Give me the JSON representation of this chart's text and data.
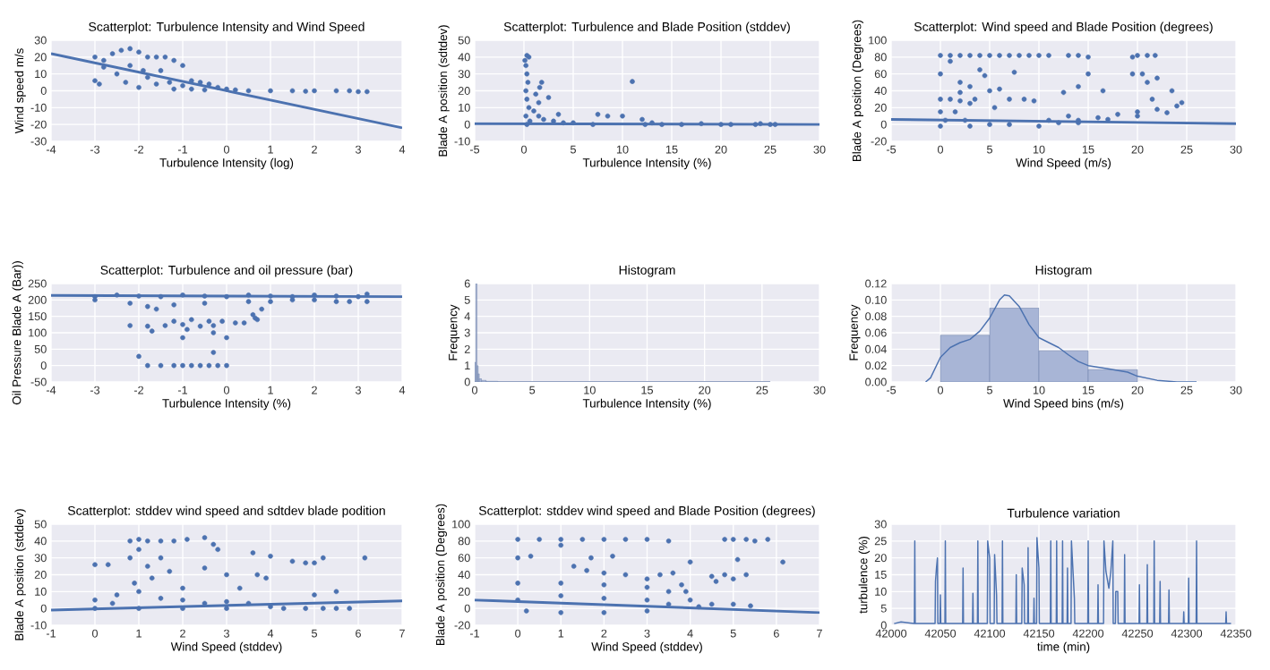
{
  "chart_data": [
    {
      "type": "scatter",
      "title": "Scatterplot: Turbulence Intensity and Wind Speed",
      "xlabel": "Turbulence Intensity (log)",
      "ylabel": "Wind speed m/s",
      "xlim": [
        -4,
        4
      ],
      "ylim": [
        -30,
        30
      ],
      "xticks": [
        -4,
        -3,
        -2,
        -1,
        0,
        1,
        2,
        3,
        4
      ],
      "yticks": [
        -30,
        -20,
        -10,
        0,
        10,
        20,
        30
      ],
      "grid": true,
      "marker": "circle",
      "series": [
        {
          "type": "scatter",
          "color": "#4c72b0",
          "x": [
            -3,
            -2.9,
            -3,
            -2.8,
            -2.6,
            -2.4,
            -2.2,
            -2.0,
            -1.8,
            -1.6,
            -1.4,
            -1.2,
            -1.0,
            -2.8,
            -2.5,
            -2.3,
            -2,
            -1.8,
            -1.5,
            -1.3,
            -1,
            -0.8,
            -0.6,
            -0.4,
            -0.2,
            -2.2,
            -1.9,
            -1.6,
            -1.2,
            -0.8,
            0,
            0.2,
            0.5,
            1,
            1.5,
            2,
            2.5,
            3,
            3.2,
            -0.5,
            1.8,
            2.8
          ],
          "values": [
            6,
            4,
            20,
            18,
            22,
            24,
            25,
            23,
            20,
            20,
            20,
            18,
            15,
            14,
            10,
            5,
            2,
            8,
            12,
            5,
            3,
            6,
            5,
            4,
            2,
            15,
            12,
            4,
            1,
            1,
            1,
            0.5,
            0,
            0,
            0,
            0,
            0,
            -0.5,
            -0.5,
            0.5,
            -0.3,
            0
          ]
        },
        {
          "type": "line",
          "color": "#4c72b0",
          "x": [
            -4,
            4
          ],
          "values": [
            22,
            -22
          ],
          "marker": "none"
        }
      ]
    },
    {
      "type": "scatter",
      "title": "Scatterplot: Turbulence and Blade Position (stddev)",
      "xlabel": "Turbulence Intensity (%)",
      "ylabel": "Blade A position (sdtdev)",
      "xlim": [
        -5,
        30
      ],
      "ylim": [
        -10,
        50
      ],
      "xticks": [
        -5,
        0,
        5,
        10,
        15,
        20,
        25,
        30
      ],
      "yticks": [
        -10,
        0,
        10,
        20,
        30,
        40,
        50
      ],
      "grid": true,
      "marker": "circle",
      "series": [
        {
          "type": "scatter",
          "color": "#4c72b0",
          "x": [
            0.1,
            0.3,
            0.5,
            0.2,
            0.3,
            0.4,
            0.2,
            0.3,
            0.5,
            0.2,
            0.3,
            0.6,
            1,
            1.5,
            1.2,
            1.6,
            1.8,
            1.5,
            2.5,
            2,
            3,
            3.5,
            4,
            5,
            7,
            7.5,
            8.5,
            10,
            11,
            12,
            12.3,
            13,
            14,
            16,
            18,
            20,
            21,
            23.5,
            24,
            25,
            25.5
          ],
          "values": [
            38,
            41,
            40,
            35,
            30,
            25,
            20,
            15,
            10,
            5,
            0,
            2,
            8,
            5,
            18,
            22,
            25,
            13,
            16,
            3,
            2,
            6,
            1,
            1,
            0,
            6,
            5,
            5,
            25.5,
            3,
            0,
            1,
            0,
            0,
            0.5,
            0,
            0,
            0,
            0.5,
            0,
            0
          ]
        },
        {
          "type": "line",
          "color": "#4c72b0",
          "x": [
            -5,
            30
          ],
          "values": [
            0.5,
            0
          ],
          "marker": "none"
        }
      ]
    },
    {
      "type": "scatter",
      "title": "Scatterplot: Wind speed and Blade Position (degrees)",
      "xlabel": "Wind Speed (m/s)",
      "ylabel": "Blade A position (Degrees)",
      "xlim": [
        -5,
        30
      ],
      "ylim": [
        -20,
        100
      ],
      "xticks": [
        -5,
        0,
        5,
        10,
        15,
        20,
        25,
        30
      ],
      "yticks": [
        -20,
        0,
        20,
        40,
        60,
        80,
        100
      ],
      "grid": true,
      "marker": "circle",
      "series": [
        {
          "type": "scatter",
          "color": "#4c72b0",
          "x": [
            0,
            1,
            2,
            3,
            4,
            5,
            6,
            7,
            8,
            9,
            10,
            11,
            13,
            14,
            15,
            19.5,
            20,
            21,
            21.8,
            0,
            1,
            2,
            3,
            4,
            5,
            6,
            7,
            8.5,
            9.5,
            3.5,
            5.5,
            7.5,
            14,
            15,
            12.5,
            16.5,
            19.5,
            20.5,
            21,
            22,
            21.5,
            23.5,
            2,
            4.5,
            0,
            1,
            2,
            3,
            0,
            1.5,
            0.5,
            2.5,
            0,
            3,
            5,
            7,
            10,
            12,
            14,
            16,
            18,
            20,
            22,
            24,
            24.5,
            23,
            20,
            17,
            14,
            11,
            13
          ],
          "values": [
            82,
            82,
            82,
            82,
            82,
            82,
            82,
            82,
            82,
            82,
            82,
            82,
            82,
            82,
            80,
            80,
            82,
            82,
            82,
            60,
            75,
            50,
            45,
            65,
            40,
            42,
            30,
            30,
            28,
            30,
            20,
            62,
            45,
            60,
            38,
            40,
            60,
            60,
            50,
            55,
            30,
            40,
            38,
            58,
            30,
            30,
            28,
            25,
            15,
            15,
            5,
            5,
            -2,
            -2,
            0,
            0,
            -2,
            2,
            5,
            8,
            12,
            15,
            18,
            22,
            26,
            14,
            10,
            6,
            2,
            5,
            10
          ]
        },
        {
          "type": "line",
          "color": "#4c72b0",
          "x": [
            -5,
            30
          ],
          "values": [
            6,
            1
          ],
          "marker": "none"
        }
      ]
    },
    {
      "type": "scatter",
      "title": "Scatterplot: Turbulence and oil pressure (bar)",
      "xlabel": "Turbulence Intensity (%)",
      "ylabel": "Oil Pressure Blade A (Bar))",
      "xlim": [
        -4,
        4
      ],
      "ylim": [
        -50,
        250
      ],
      "xticks": [
        -4,
        -3,
        -2,
        -1,
        0,
        1,
        2,
        3,
        4
      ],
      "yticks": [
        -50,
        0,
        50,
        100,
        150,
        200,
        250
      ],
      "grid": true,
      "marker": "circle",
      "series": [
        {
          "type": "scatter",
          "color": "#4c72b0",
          "x": [
            -3,
            -2.5,
            -2,
            -1.5,
            -1,
            -0.5,
            0,
            0.5,
            1,
            1.5,
            2,
            2.5,
            3,
            3.2,
            -3,
            -2.2,
            -1.8,
            -1.2,
            -0.5,
            0.5,
            1,
            1.5,
            2,
            2.5,
            2.8,
            3.2,
            -1.6,
            0.8,
            0.7,
            0.6,
            0.65,
            -2.2,
            -1.8,
            -1.4,
            -1,
            -0.6,
            -0.3,
            -1.2,
            -0.8,
            -0.4,
            -0.1,
            0.2,
            0.4,
            -1.7,
            -0.9,
            -1,
            -0.3,
            0,
            -2,
            -0.3,
            -1.8,
            -1.5,
            -1.2,
            -1,
            -0.8,
            -0.6,
            -0.4,
            -0.2,
            0
          ],
          "values": [
            210,
            215,
            212,
            210,
            215,
            212,
            210,
            215,
            212,
            210,
            215,
            212,
            210,
            218,
            200,
            190,
            180,
            185,
            190,
            195,
            195,
            200,
            200,
            195,
            195,
            195,
            172,
            172,
            140,
            155,
            145,
            122,
            120,
            122,
            125,
            120,
            122,
            135,
            140,
            135,
            135,
            130,
            130,
            105,
            110,
            85,
            100,
            85,
            28,
            40,
            0,
            0,
            0,
            0,
            0,
            0,
            0,
            0,
            0
          ]
        },
        {
          "type": "line",
          "color": "#4c72b0",
          "x": [
            -4,
            4
          ],
          "values": [
            214,
            210
          ],
          "marker": "none"
        }
      ]
    },
    {
      "type": "histogram",
      "title": "Histogram",
      "xlabel": "Turbulence Intensity (%)",
      "ylabel": "Frequency",
      "xlim": [
        0,
        30
      ],
      "ylim": [
        0,
        6
      ],
      "xticks": [
        0,
        5,
        10,
        15,
        20,
        25,
        30
      ],
      "yticks": [
        0,
        1,
        2,
        3,
        4,
        5,
        6
      ],
      "grid": true,
      "color": "#a8b5d6",
      "bins": [
        0,
        0.1,
        0.2,
        0.3,
        0.4,
        0.6,
        1,
        2,
        25.7
      ],
      "values": [
        1.2,
        6,
        1,
        0.5,
        0.2,
        0.1,
        0.05,
        0.02
      ]
    },
    {
      "type": "histogram",
      "title": "Histogram",
      "xlabel": "Wind Speed bins (m/s)",
      "ylabel": "Frequency",
      "xlim": [
        -5,
        30
      ],
      "ylim": [
        0,
        0.12
      ],
      "xticks": [
        -5,
        0,
        5,
        10,
        15,
        20,
        25,
        30
      ],
      "yticks": [
        {
          "value": 0,
          "label": "0.00"
        },
        {
          "value": 0.02,
          "label": "0.02"
        },
        {
          "value": 0.04,
          "label": "0.04"
        },
        {
          "value": 0.06,
          "label": "0.06"
        },
        {
          "value": 0.08,
          "label": "0.08"
        },
        {
          "value": 0.1,
          "label": "0.10"
        },
        {
          "value": 0.12,
          "label": "0.12"
        }
      ],
      "grid": true,
      "color": "#a8b5d6",
      "bins": [
        0,
        5,
        10,
        15,
        20
      ],
      "values": [
        0.057,
        0.09,
        0.038,
        0.015
      ],
      "series": [
        {
          "type": "line",
          "color": "#4c72b0",
          "x": [
            -1.5,
            -1,
            0,
            1,
            2,
            3,
            4,
            5,
            6,
            6.5,
            7,
            8,
            9,
            10,
            11,
            12,
            13,
            14,
            15,
            17,
            19,
            20,
            22,
            24,
            26
          ],
          "values": [
            0,
            0.005,
            0.03,
            0.042,
            0.048,
            0.052,
            0.062,
            0.078,
            0.1,
            0.106,
            0.105,
            0.092,
            0.07,
            0.054,
            0.048,
            0.042,
            0.033,
            0.025,
            0.02,
            0.016,
            0.012,
            0.007,
            0.002,
            0,
            0
          ]
        }
      ]
    },
    {
      "type": "scatter",
      "title": "Scatterplot: stddev wind speed and sdtdev blade podition",
      "xlabel": "Wind Speed (stddev)",
      "ylabel": "Blade A position (stddev)",
      "xlim": [
        -1,
        7
      ],
      "ylim": [
        -10,
        50
      ],
      "xticks": [
        -1,
        0,
        1,
        2,
        3,
        4,
        5,
        6,
        7
      ],
      "yticks": [
        -10,
        0,
        10,
        20,
        30,
        40,
        50
      ],
      "grid": true,
      "marker": "circle",
      "series": [
        {
          "type": "scatter",
          "color": "#4c72b0",
          "x": [
            0.8,
            1,
            1.2,
            1.5,
            1.8,
            2.1,
            0.8,
            1,
            1.2,
            1.5,
            1.7,
            1.3,
            0.9,
            2,
            0,
            0.3,
            2.5,
            2.7,
            2.8,
            3,
            2.5,
            3.6,
            4,
            3.7,
            3.9,
            4.5,
            4.8,
            5,
            5.2,
            6.15,
            5,
            5.5,
            3.3,
            0,
            0.5,
            1,
            1.5,
            2,
            2.5,
            3,
            3.5,
            4,
            4.3,
            0,
            1,
            2,
            3,
            4.8,
            5.2,
            5.5,
            5.8,
            0.4
          ],
          "values": [
            40,
            41,
            40,
            40,
            40,
            41,
            30,
            35,
            25,
            30,
            22,
            18,
            15,
            12,
            26,
            26,
            42,
            38,
            35,
            20,
            24,
            33,
            31,
            20,
            18,
            28,
            27,
            27,
            30,
            30,
            8,
            10,
            12,
            5,
            8,
            10,
            6,
            5,
            3,
            4,
            3,
            1,
            0,
            0,
            0,
            0,
            0,
            0,
            0,
            0,
            0,
            3
          ]
        },
        {
          "type": "line",
          "color": "#4c72b0",
          "x": [
            -1,
            7
          ],
          "values": [
            -1,
            4.5
          ],
          "marker": "none"
        }
      ]
    },
    {
      "type": "scatter",
      "title": "Scatterplot: stddev wind speed and Blade Position (degrees)",
      "xlabel": "Wind Speed (stddev)",
      "ylabel": "Blade A position (Degrees)",
      "xlim": [
        -1,
        7
      ],
      "ylim": [
        -20,
        100
      ],
      "xticks": [
        -1,
        0,
        1,
        2,
        3,
        4,
        5,
        6,
        7
      ],
      "yticks": [
        -20,
        0,
        20,
        40,
        60,
        80,
        100
      ],
      "grid": true,
      "marker": "circle",
      "series": [
        {
          "type": "scatter",
          "color": "#4c72b0",
          "x": [
            0,
            0.5,
            1,
            1.5,
            2,
            2.5,
            3,
            3.5,
            4.8,
            5,
            5.3,
            5.5,
            5.8,
            0,
            0.3,
            1,
            1.3,
            1.6,
            2,
            2.5,
            1.7,
            2.2,
            3,
            3.3,
            3.6,
            4,
            4.5,
            4.6,
            4.8,
            5,
            5.1,
            5.3,
            6.15,
            3.9,
            3.8,
            0,
            1,
            2,
            3,
            3.5,
            0,
            1,
            2,
            3,
            0.2,
            1,
            2,
            3,
            3.5,
            4,
            4.5,
            5,
            5.4,
            4.2
          ],
          "values": [
            82,
            82,
            82,
            82,
            82,
            82,
            82,
            80,
            82,
            82,
            82,
            80,
            82,
            60,
            62,
            75,
            50,
            45,
            42,
            40,
            60,
            62,
            35,
            40,
            42,
            55,
            38,
            32,
            40,
            35,
            58,
            40,
            55,
            20,
            28,
            30,
            30,
            28,
            25,
            20,
            10,
            15,
            12,
            10,
            -3,
            -5,
            -5,
            -3,
            5,
            10,
            5,
            5,
            3,
            2
          ]
        },
        {
          "type": "line",
          "color": "#4c72b0",
          "x": [
            -1,
            7
          ],
          "values": [
            10,
            -5
          ],
          "marker": "none"
        }
      ]
    },
    {
      "type": "line",
      "title": "Turbulence variation",
      "xlabel": "time (min)",
      "ylabel": "turbulence (%)",
      "xlim": [
        42000,
        42350
      ],
      "ylim": [
        0,
        30
      ],
      "xticks": [
        42000,
        42050,
        42100,
        42150,
        42200,
        42250,
        42300,
        42350
      ],
      "yticks": [
        0,
        5,
        10,
        15,
        20,
        25,
        30
      ],
      "grid": true,
      "series": [
        {
          "type": "line",
          "color": "#4c72b0",
          "x": [
            42003,
            42010,
            42023.6,
            42024,
            42024.4,
            42044.6,
            42045,
            42046,
            42047,
            42047.4,
            42049.6,
            42050,
            42050.4,
            42054.6,
            42055,
            42055.4,
            42072.6,
            42073,
            42073.4,
            42082.6,
            42083,
            42083.4,
            42087.6,
            42088,
            42088.4,
            42097.6,
            42098,
            42100,
            42100.4,
            42104.6,
            42105,
            42107,
            42107.4,
            42112.6,
            42113,
            42113.4,
            42126.6,
            42127,
            42127.4,
            42132.6,
            42133,
            42135,
            42135.4,
            42138.6,
            42139,
            42139.4,
            42144.6,
            42145,
            42145.4,
            42147.6,
            42148,
            42150,
            42150.4,
            42161.6,
            42162,
            42162.4,
            42167.6,
            42168,
            42168.4,
            42173.6,
            42174,
            42174.4,
            42178.6,
            42179,
            42179.4,
            42182.6,
            42183,
            42186,
            42186.4,
            42199.6,
            42200,
            42200.4,
            42209.6,
            42210,
            42210.4,
            42215.6,
            42216,
            42218,
            42221,
            42223,
            42225,
            42225.4,
            42227.6,
            42228,
            42230,
            42230.4,
            42236.6,
            42237,
            42237.4,
            42251.6,
            42252,
            42252.4,
            42259.6,
            42260,
            42260.4,
            42266.6,
            42267,
            42267.4,
            42272.6,
            42273,
            42273.4,
            42281.6,
            42282,
            42282.4,
            42296.6,
            42297,
            42297.4,
            42301.6,
            42302,
            42302.4,
            42309.6,
            42310,
            42310.4,
            42339.6,
            42340,
            42340.4,
            42345
          ],
          "values": [
            0.5,
            1,
            0.5,
            25,
            0.5,
            0.5,
            13,
            17,
            20,
            0.5,
            0.5,
            9,
            0.5,
            0.5,
            25,
            0.5,
            0.5,
            17,
            0.5,
            0.5,
            9.5,
            0.5,
            0.5,
            25,
            0.5,
            0.5,
            25,
            20,
            0.5,
            0.5,
            21,
            9,
            0.5,
            0.5,
            25,
            0.5,
            0.5,
            15,
            0.5,
            0.5,
            17,
            12,
            0.5,
            0.5,
            23,
            0.5,
            0.5,
            8,
            0.5,
            0.5,
            26,
            17,
            0.5,
            0.5,
            25,
            0.5,
            0.5,
            25,
            0.5,
            0.5,
            25,
            0.5,
            0.5,
            17,
            0.5,
            0.5,
            25,
            8,
            0.5,
            0.5,
            25,
            0.5,
            0.5,
            12,
            0.5,
            0.5,
            25,
            16,
            11,
            16,
            25,
            0.5,
            0.5,
            10,
            10,
            0.5,
            0.5,
            21,
            0.5,
            0.5,
            12,
            0.5,
            0.5,
            18,
            0.5,
            0.5,
            25,
            0.5,
            0.5,
            13,
            0.5,
            0.5,
            10.5,
            0.5,
            0.5,
            4,
            0.5,
            0.5,
            14,
            0.5,
            0.5,
            25,
            0.5,
            0.5,
            4,
            0.5,
            0.5
          ]
        }
      ]
    }
  ]
}
